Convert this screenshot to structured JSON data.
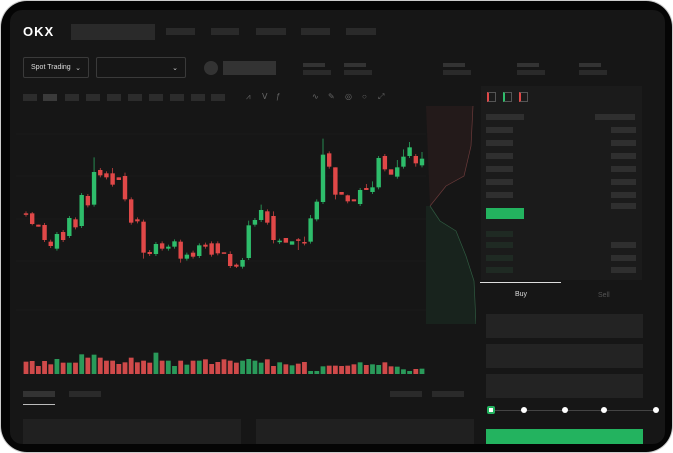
{
  "header": {
    "logo": "OKX"
  },
  "controls": {
    "market_select": "Spot Trading",
    "pair_select": ""
  },
  "toolbar": {
    "icons": [
      "line-style-icon",
      "indicator-icon",
      "fx-icon",
      "trend-line-icon",
      "pencil-icon",
      "target-icon",
      "circle-icon",
      "expand-icon"
    ]
  },
  "orderbook": {
    "view_icons": [
      "both-sides-icon",
      "bids-only-icon",
      "asks-only-icon"
    ]
  },
  "trade": {
    "tabs": [
      {
        "label": "Buy",
        "active": true
      },
      {
        "label": "Sell",
        "active": false
      }
    ],
    "slider_steps": [
      0,
      25,
      50,
      75,
      100
    ],
    "slider_value": 0
  },
  "colors": {
    "up": "#2ebd6b",
    "down": "#e04848",
    "accent": "#23b35f",
    "background": "#161616"
  },
  "chart_data": {
    "type": "candlestick",
    "candles": [
      [
        250,
        246,
        256,
        240
      ],
      [
        250,
        218,
        254,
        214
      ],
      [
        216,
        210,
        216,
        210
      ],
      [
        215,
        170,
        221,
        164
      ],
      [
        165,
        152,
        171,
        146
      ],
      [
        144,
        188,
        194,
        138
      ],
      [
        194,
        170,
        200,
        164
      ],
      [
        182,
        236,
        242,
        176
      ],
      [
        232,
        208,
        238,
        202
      ],
      [
        212,
        305,
        311,
        206
      ],
      [
        302,
        274,
        308,
        268
      ],
      [
        276,
        374,
        418,
        270
      ],
      [
        380,
        364,
        386,
        358
      ],
      [
        370,
        358,
        376,
        352
      ],
      [
        370,
        336,
        386,
        330
      ],
      [
        358,
        350,
        358,
        350
      ],
      [
        362,
        292,
        372,
        286
      ],
      [
        292,
        222,
        298,
        216
      ],
      [
        232,
        226,
        238,
        220
      ],
      [
        225,
        132,
        231,
        114
      ],
      [
        134,
        128,
        140,
        122
      ],
      [
        128,
        158,
        164,
        122
      ],
      [
        160,
        144,
        166,
        138
      ],
      [
        144,
        150,
        156,
        138
      ],
      [
        150,
        166,
        172,
        144
      ],
      [
        165,
        114,
        171,
        102
      ],
      [
        114,
        126,
        132,
        108
      ],
      [
        132,
        120,
        138,
        114
      ],
      [
        122,
        154,
        160,
        116
      ],
      [
        156,
        150,
        162,
        144
      ],
      [
        160,
        126,
        166,
        120
      ],
      [
        160,
        130,
        166,
        124
      ],
      [
        133,
        130,
        133,
        130
      ],
      [
        128,
        92,
        136,
        86
      ],
      [
        96,
        90,
        100,
        86
      ],
      [
        90,
        110,
        116,
        84
      ],
      [
        116,
        214,
        228,
        110
      ],
      [
        216,
        230,
        236,
        210
      ],
      [
        230,
        260,
        276,
        224
      ],
      [
        256,
        222,
        262,
        216
      ],
      [
        242,
        170,
        256,
        160
      ],
      [
        164,
        168,
        174,
        158
      ],
      [
        176,
        162,
        176,
        162
      ],
      [
        156,
        166,
        166,
        156
      ],
      [
        172,
        170,
        176,
        140
      ],
      [
        164,
        160,
        180,
        154
      ],
      [
        165,
        235,
        245,
        159
      ],
      [
        232,
        285,
        292,
        226
      ],
      [
        284,
        426,
        474,
        278
      ],
      [
        430,
        390,
        436,
        384
      ],
      [
        388,
        306,
        388,
        292
      ],
      [
        314,
        306,
        314,
        306
      ],
      [
        304,
        286,
        306,
        280
      ],
      [
        292,
        286,
        292,
        286
      ],
      [
        278,
        320,
        326,
        272
      ],
      [
        326,
        320,
        338,
        320
      ],
      [
        314,
        328,
        346,
        308
      ],
      [
        328,
        416,
        422,
        322
      ],
      [
        422,
        382,
        428,
        376
      ],
      [
        382,
        366,
        382,
        366
      ],
      [
        360,
        388,
        410,
        354
      ],
      [
        390,
        420,
        442,
        384
      ],
      [
        422,
        448,
        464,
        416
      ],
      [
        422,
        400,
        428,
        390
      ],
      [
        394,
        414,
        434,
        388
      ]
    ],
    "volume": [
      37,
      39,
      24,
      39,
      29,
      45,
      34,
      34,
      34,
      59,
      49,
      58,
      49,
      40,
      40,
      30,
      35,
      49,
      35,
      40,
      34,
      64,
      40,
      40,
      24,
      40,
      28,
      40,
      40,
      44,
      30,
      36,
      44,
      40,
      34,
      40,
      45,
      40,
      34,
      44,
      24,
      35,
      29,
      26,
      31,
      36,
      9,
      9,
      23,
      25,
      25,
      24,
      25,
      29,
      35,
      27,
      29,
      27,
      35,
      23,
      22,
      14,
      9,
      15,
      16
    ]
  }
}
